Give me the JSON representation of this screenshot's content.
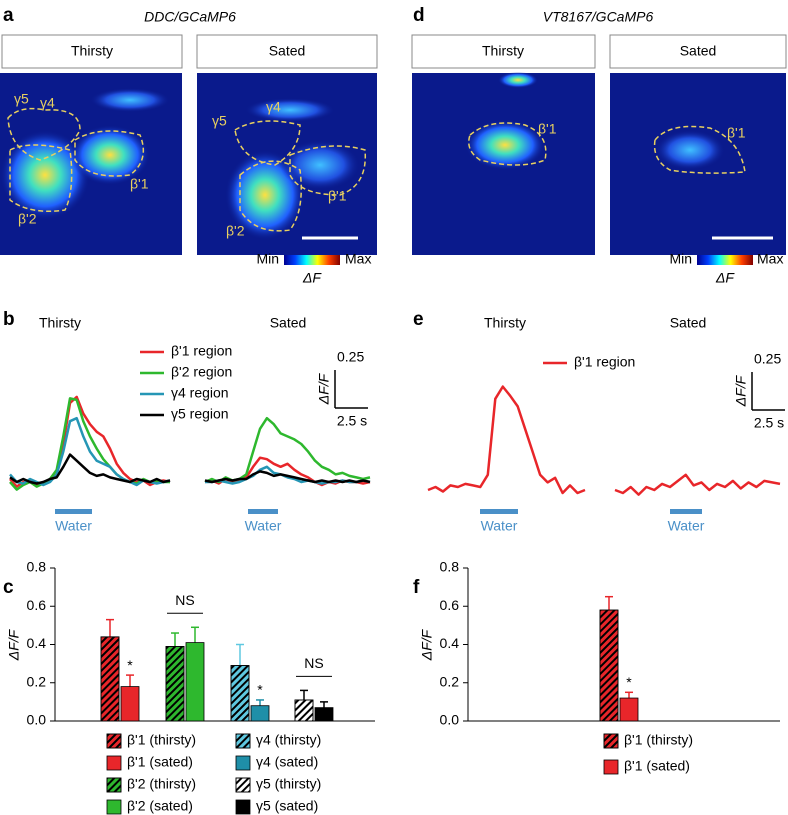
{
  "panel_a": {
    "letter": "a",
    "title": "DDC/GCaMP6",
    "conditions": [
      "Thirsty",
      "Sated"
    ],
    "region_labels": [
      [
        "γ5",
        "γ4",
        "β'1",
        "β'2"
      ],
      [
        "γ5",
        "γ4",
        "β'1",
        "β'2"
      ]
    ],
    "colorbar": {
      "min": "Min",
      "max": "Max",
      "label": "ΔF"
    }
  },
  "panel_d": {
    "letter": "d",
    "title": "VT8167/GCaMP6",
    "conditions": [
      "Thirsty",
      "Sated"
    ],
    "region_labels": [
      [
        "β'1"
      ],
      [
        "β'1"
      ]
    ],
    "colorbar": {
      "min": "Min",
      "max": "Max",
      "label": "ΔF"
    }
  },
  "panel_b": {
    "letter": "b",
    "type": "line",
    "conditions": [
      "Thirsty",
      "Sated"
    ],
    "stimulus": "Water",
    "scale_bar": {
      "y": 0.25,
      "y_label": "ΔF/F",
      "x_label": "2.5 s"
    },
    "series": [
      {
        "name": "β'1 region",
        "color": "#e8262a",
        "values": [
          [
            0.02,
            -0.03,
            0.0,
            0.01,
            -0.02,
            0.0,
            0.01,
            0.05,
            0.25,
            0.52,
            0.56,
            0.45,
            0.38,
            0.33,
            0.3,
            0.22,
            0.12,
            0.06,
            0.02,
            0.0,
            0.01,
            -0.02,
            0.0,
            0.01,
            0.0
          ],
          [
            0.0,
            0.01,
            -0.01,
            0.02,
            0.0,
            0.01,
            0.03,
            0.1,
            0.16,
            0.15,
            0.12,
            0.1,
            0.12,
            0.08,
            0.05,
            0.03,
            0.0,
            -0.02,
            0.0,
            -0.01,
            0.01,
            0.0,
            0.0,
            -0.01,
            0.0
          ]
        ]
      },
      {
        "name": "β'2 region",
        "color": "#2eb82e",
        "values": [
          [
            0.0,
            -0.05,
            -0.02,
            0.0,
            -0.03,
            -0.01,
            0.02,
            0.08,
            0.3,
            0.55,
            0.54,
            0.4,
            0.3,
            0.22,
            0.15,
            0.1,
            0.05,
            0.02,
            0.0,
            -0.01,
            0.02,
            0.0,
            0.01,
            0.0,
            0.0
          ],
          [
            0.0,
            0.02,
            0.0,
            0.03,
            0.01,
            0.02,
            0.05,
            0.2,
            0.35,
            0.42,
            0.38,
            0.32,
            0.3,
            0.28,
            0.25,
            0.2,
            0.14,
            0.1,
            0.08,
            0.05,
            0.06,
            0.04,
            0.03,
            0.02,
            0.03
          ]
        ]
      },
      {
        "name": "γ4 region",
        "color": "#2596b5",
        "values": [
          [
            0.05,
            0.0,
            -0.01,
            0.02,
            0.0,
            -0.02,
            0.0,
            0.05,
            0.2,
            0.4,
            0.42,
            0.3,
            0.2,
            0.14,
            0.12,
            0.1,
            0.05,
            0.02,
            0.0,
            -0.02,
            0.01,
            0.0,
            -0.01,
            0.0,
            0.01
          ],
          [
            0.0,
            0.0,
            0.01,
            0.0,
            -0.01,
            0.0,
            0.02,
            0.04,
            0.08,
            0.1,
            0.06,
            0.05,
            0.03,
            0.02,
            0.0,
            0.01,
            0.0,
            -0.01,
            0.0,
            0.0,
            0.01,
            0.0,
            0.0,
            0.01,
            0.0
          ]
        ]
      },
      {
        "name": "γ5 region",
        "color": "#000000",
        "values": [
          [
            0.03,
            0.0,
            0.02,
            0.0,
            -0.01,
            0.0,
            0.02,
            0.03,
            0.1,
            0.18,
            0.14,
            0.1,
            0.06,
            0.04,
            0.05,
            0.03,
            0.02,
            0.01,
            0.0,
            0.02,
            0.01,
            0.0,
            0.02,
            0.0,
            0.01
          ],
          [
            0.01,
            0.0,
            0.01,
            0.02,
            0.01,
            0.02,
            0.02,
            0.05,
            0.07,
            0.06,
            0.04,
            0.05,
            0.04,
            0.03,
            0.02,
            0.01,
            0.0,
            0.01,
            0.0,
            0.01,
            0.0,
            0.01,
            0.0,
            0.01,
            0.0
          ]
        ]
      }
    ]
  },
  "panel_e": {
    "letter": "e",
    "type": "line",
    "conditions": [
      "Thirsty",
      "Sated"
    ],
    "stimulus": "Water",
    "scale_bar": {
      "y": 0.25,
      "y_label": "ΔF/F",
      "x_label": "2.5 s"
    },
    "series": [
      {
        "name": "β'1 region",
        "color": "#e8262a",
        "values": [
          [
            0.0,
            0.02,
            -0.01,
            0.03,
            0.02,
            0.04,
            0.03,
            0.02,
            0.1,
            0.6,
            0.68,
            0.62,
            0.55,
            0.4,
            0.25,
            0.1,
            0.05,
            0.08,
            -0.02,
            0.03,
            -0.02,
            0.0
          ],
          [
            0.0,
            -0.02,
            0.02,
            -0.03,
            0.02,
            0.0,
            0.04,
            0.02,
            0.06,
            0.1,
            0.03,
            0.05,
            0.0,
            0.04,
            0.02,
            0.06,
            0.01,
            0.05,
            0.02,
            0.06,
            0.05,
            0.04
          ]
        ]
      }
    ]
  },
  "panel_c": {
    "letter": "c",
    "type": "bar",
    "ylabel": "ΔF/F",
    "ylim": [
      0,
      0.8
    ],
    "yticks": [
      {
        "value": 0,
        "label": "0.0"
      },
      0.2,
      0.4,
      0.6,
      0.8
    ],
    "groups": [
      {
        "bars": [
          {
            "name": "β'1 (thirsty)",
            "color": "#e8262a",
            "hatched": true,
            "value": 0.44,
            "error": 0.09
          },
          {
            "name": "β'1 (sated)",
            "color": "#e8262a",
            "hatched": false,
            "value": 0.18,
            "error": 0.06,
            "annotation": "*"
          }
        ]
      },
      {
        "annotation": "NS",
        "bars": [
          {
            "name": "β'2 (thirsty)",
            "color": "#2eb82e",
            "hatched": true,
            "value": 0.39,
            "error": 0.07
          },
          {
            "name": "β'2 (sated)",
            "color": "#2eb82e",
            "hatched": false,
            "value": 0.41,
            "error": 0.08
          }
        ]
      },
      {
        "bars": [
          {
            "name": "γ4 (thirsty)",
            "color": "#5fc8e0",
            "hatched": true,
            "value": 0.29,
            "error": 0.11
          },
          {
            "name": "γ4 (sated)",
            "color": "#1f8fa8",
            "hatched": false,
            "value": 0.08,
            "error": 0.03,
            "annotation": "*"
          }
        ]
      },
      {
        "annotation": "NS",
        "bars": [
          {
            "name": "γ5 (thirsty)",
            "color": "#ffffff",
            "hatched": true,
            "value": 0.11,
            "error": 0.05
          },
          {
            "name": "γ5 (sated)",
            "color": "#000000",
            "hatched": false,
            "value": 0.07,
            "error": 0.03
          }
        ]
      }
    ]
  },
  "panel_f": {
    "letter": "f",
    "type": "bar",
    "ylabel": "ΔF/F",
    "ylim": [
      0,
      0.8
    ],
    "yticks": [
      {
        "value": 0,
        "label": "0.0"
      },
      0.2,
      0.4,
      0.6,
      0.8
    ],
    "groups": [
      {
        "bars": [
          {
            "name": "β'1 (thirsty)",
            "color": "#e8262a",
            "hatched": true,
            "value": 0.58,
            "error": 0.07
          },
          {
            "name": "β'1 (sated)",
            "color": "#e8262a",
            "hatched": false,
            "value": 0.12,
            "error": 0.03,
            "annotation": "*"
          }
        ]
      }
    ]
  }
}
